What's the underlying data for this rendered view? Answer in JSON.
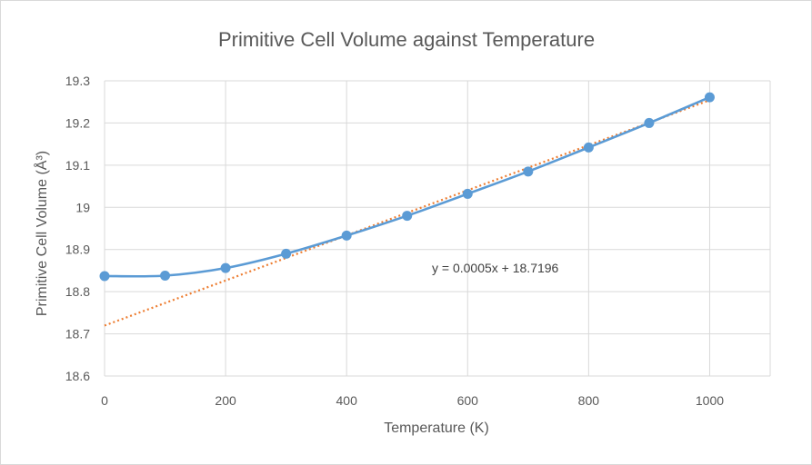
{
  "chart_data": {
    "type": "scatter",
    "title": "Primitive Cell Volume against Temperature",
    "xlabel": "Temperature (K)",
    "ylabel": "Primitive Cell Volume (Å³)",
    "xlim": [
      0,
      1100
    ],
    "ylim": [
      18.6,
      19.3
    ],
    "x_ticks": [
      0,
      200,
      400,
      600,
      800,
      1000
    ],
    "x_tick_labels": [
      "0",
      "200",
      "400",
      "600",
      "800",
      "1000"
    ],
    "y_ticks": [
      18.6,
      18.7,
      18.8,
      18.9,
      19.0,
      19.1,
      19.2,
      19.3
    ],
    "y_tick_labels": [
      "18.6",
      "18.7",
      "18.8",
      "18.9",
      "19",
      "19.1",
      "19.2",
      "19.3"
    ],
    "grid": true,
    "series": [
      {
        "name": "Primitive Cell Volume",
        "color": "#5b9bd5",
        "style": "smooth-line-markers",
        "x": [
          0,
          100,
          200,
          300,
          400,
          500,
          600,
          700,
          800,
          900,
          1000
        ],
        "y": [
          18.837,
          18.838,
          18.856,
          18.89,
          18.933,
          18.98,
          19.032,
          19.085,
          19.142,
          19.2,
          19.261
        ]
      }
    ],
    "trendline": {
      "type": "linear",
      "color": "#ed7d31",
      "style": "dotted",
      "slope": 0.0005346,
      "intercept": 18.7196,
      "x_range": [
        0,
        1000
      ],
      "equation_label": "y = 0.0005x + 18.7196"
    }
  }
}
